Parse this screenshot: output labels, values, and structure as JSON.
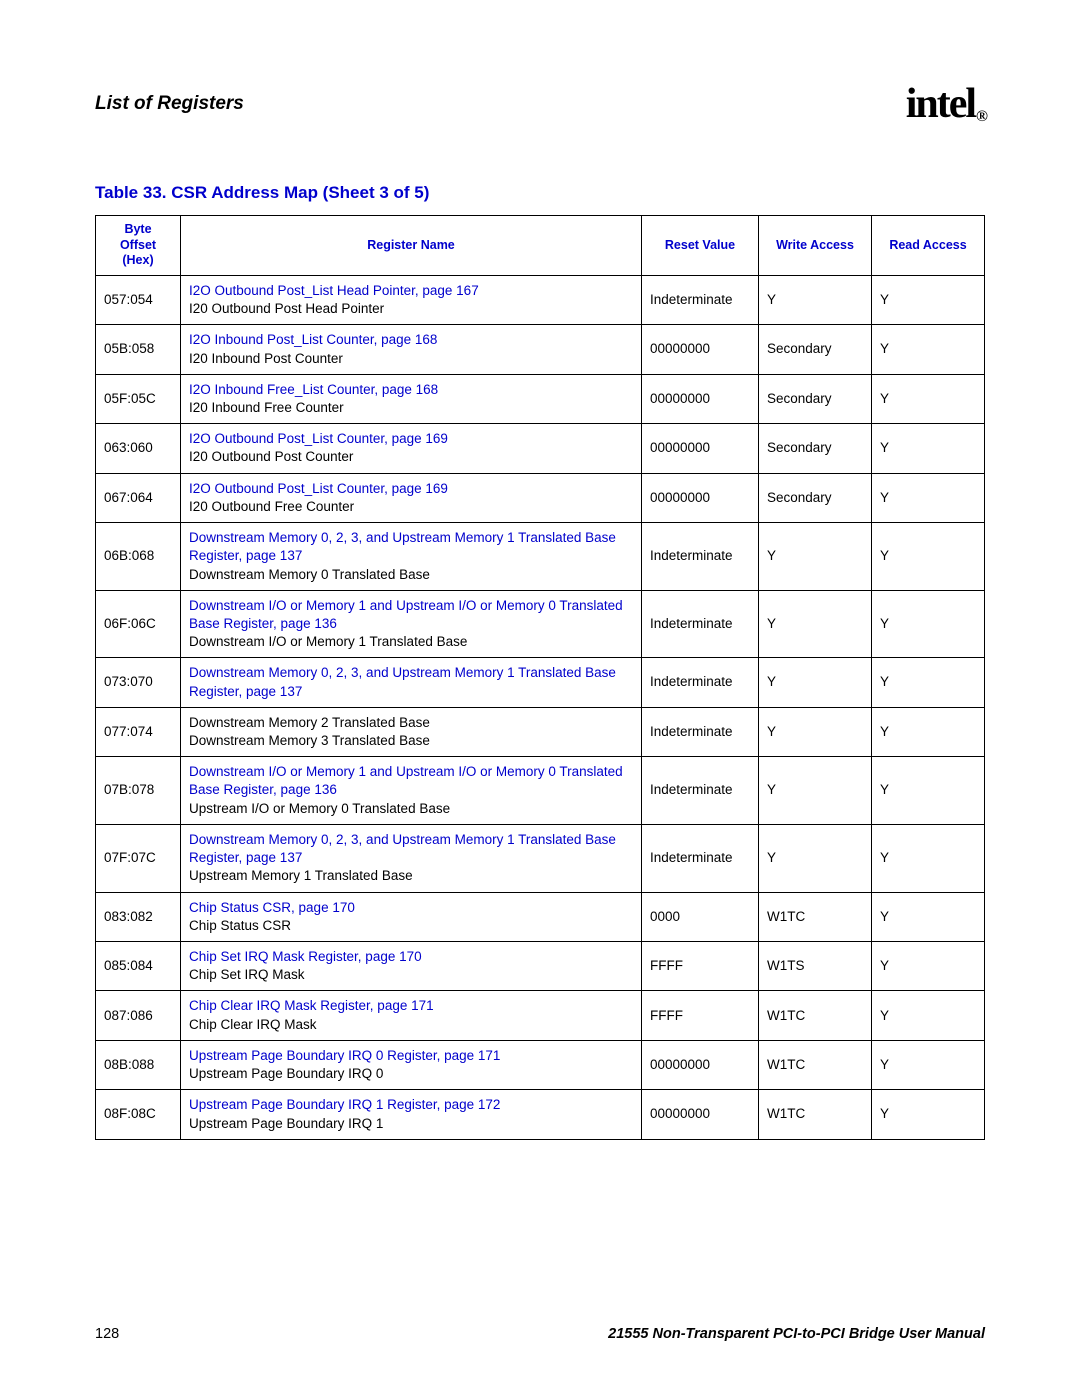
{
  "header": {
    "section_title": "List of Registers",
    "logo_text": "intel",
    "logo_mark": "®"
  },
  "table": {
    "title": "Table 33.  CSR Address Map  (Sheet 3 of 5)",
    "columns": {
      "c0": "Byte\nOffset\n(Hex)",
      "c1": "Register Name",
      "c2": "Reset Value",
      "c3": "Write Access",
      "c4": "Read Access"
    },
    "rows": [
      {
        "offset": "057:054",
        "link": "I2O Outbound Post_List Head Pointer, page 167",
        "sub": "I20 Outbound Post Head Pointer",
        "reset": "Indeterminate",
        "write": "Y",
        "read": "Y"
      },
      {
        "offset": "05B:058",
        "link": "I2O Inbound Post_List Counter, page 168",
        "sub": "I20 Inbound Post Counter",
        "reset": "00000000",
        "write": "Secondary",
        "read": "Y"
      },
      {
        "offset": "05F:05C",
        "link": "I2O Inbound Free_List Counter, page 168",
        "sub": "I20 Inbound Free Counter",
        "reset": "00000000",
        "write": "Secondary",
        "read": "Y"
      },
      {
        "offset": "063:060",
        "link": "I2O Outbound Post_List Counter, page 169",
        "sub": "I20 Outbound Post Counter",
        "reset": "00000000",
        "write": "Secondary",
        "read": "Y"
      },
      {
        "offset": "067:064",
        "link": "I2O Outbound Post_List Counter, page 169",
        "sub": "I20 Outbound Free Counter",
        "reset": "00000000",
        "write": "Secondary",
        "read": "Y"
      },
      {
        "offset": "06B:068",
        "link": "Downstream Memory 0, 2, 3, and Upstream Memory 1 Translated Base Register, page 137",
        "sub": "Downstream Memory 0 Translated Base",
        "reset": "Indeterminate",
        "write": "Y",
        "read": "Y"
      },
      {
        "offset": "06F:06C",
        "link": "Downstream I/O or Memory 1 and Upstream I/O or Memory 0 Translated Base Register, page 136",
        "sub": "Downstream I/O or Memory 1 Translated Base",
        "reset": "Indeterminate",
        "write": "Y",
        "read": "Y"
      },
      {
        "offset": "073:070",
        "link": "Downstream Memory 0, 2, 3, and Upstream Memory 1 Translated Base Register, page 137",
        "sub": "",
        "reset": "Indeterminate",
        "write": "Y",
        "read": "Y",
        "merge": "top"
      },
      {
        "offset": "077:074",
        "link": "",
        "sub": "Downstream Memory 2 Translated Base",
        "sub2": "Downstream Memory 3 Translated Base",
        "reset": "Indeterminate",
        "write": "Y",
        "read": "Y",
        "merge": "bottom"
      },
      {
        "offset": "07B:078",
        "link": "Downstream I/O or Memory 1 and Upstream I/O or Memory 0 Translated Base Register, page 136",
        "sub": "Upstream I/O or Memory 0 Translated Base",
        "reset": "Indeterminate",
        "write": "Y",
        "read": "Y"
      },
      {
        "offset": "07F:07C",
        "link": "Downstream Memory 0, 2, 3, and Upstream Memory 1 Translated Base Register, page 137",
        "sub": "Upstream Memory 1 Translated Base",
        "reset": "Indeterminate",
        "write": "Y",
        "read": "Y"
      },
      {
        "offset": "083:082",
        "link": "Chip Status CSR, page 170",
        "sub": "Chip Status CSR",
        "reset": "0000",
        "write": "W1TC",
        "read": "Y"
      },
      {
        "offset": "085:084",
        "link": "Chip Set IRQ Mask Register, page 170",
        "sub": "Chip Set IRQ Mask",
        "reset": "FFFF",
        "write": "W1TS",
        "read": "Y"
      },
      {
        "offset": "087:086",
        "link": "Chip Clear IRQ Mask Register, page 171",
        "sub": "Chip Clear IRQ Mask",
        "reset": "FFFF",
        "write": "W1TC",
        "read": "Y"
      },
      {
        "offset": "08B:088",
        "link": "Upstream Page Boundary IRQ 0 Register, page 171",
        "sub": "Upstream Page Boundary IRQ 0",
        "reset": "00000000",
        "write": "W1TC",
        "read": "Y"
      },
      {
        "offset": "08F:08C",
        "link": "Upstream Page Boundary IRQ 1 Register, page 172",
        "sub": "Upstream Page Boundary IRQ 1",
        "reset": "00000000",
        "write": "W1TC",
        "read": "Y"
      }
    ]
  },
  "footer": {
    "page_number": "128",
    "manual_title": "21555 Non-Transparent PCI-to-PCI Bridge User Manual"
  },
  "colors": {
    "link_blue": "#0000cc",
    "text_black": "#000000",
    "background": "#ffffff"
  }
}
